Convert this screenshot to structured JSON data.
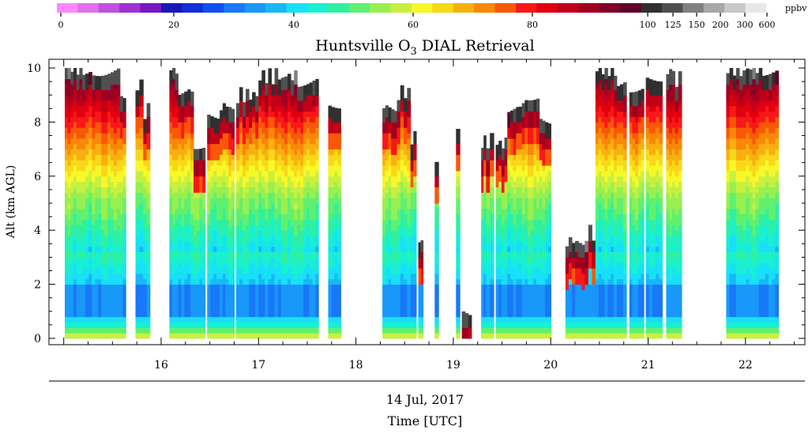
{
  "chart_data": {
    "type": "heatmap",
    "title_prefix": "Huntsville O",
    "title_sub": "3",
    "title_suffix": " DIAL Retrieval",
    "ylabel": "Alt (km AGL)",
    "date_label": "14 Jul, 2017",
    "xlabel": "Time [UTC]",
    "y_ticks": [
      "0",
      "2",
      "4",
      "6",
      "8",
      "10"
    ],
    "y_range": [
      0,
      10
    ],
    "x_range": [
      15.0,
      22.6
    ],
    "x_ticks": [
      "16",
      "17",
      "18",
      "19",
      "20",
      "21",
      "22"
    ],
    "colorbar": {
      "unit": "ppbv",
      "labels": [
        "0",
        "20",
        "40",
        "60",
        "80",
        "100",
        "125",
        "150",
        "200",
        "300",
        "600"
      ],
      "colors": [
        "#ff88ff",
        "#e070f0",
        "#c050e0",
        "#a030d0",
        "#7818c0",
        "#1818b8",
        "#1030d8",
        "#1050f0",
        "#1878f8",
        "#1898f8",
        "#18b8f8",
        "#18e0f8",
        "#18f0d0",
        "#30f0a0",
        "#60f070",
        "#98f050",
        "#c8f040",
        "#f8f828",
        "#f8d818",
        "#f8b010",
        "#f88808",
        "#f85808",
        "#f81818",
        "#e00010",
        "#c00018",
        "#a00020",
        "#800028",
        "#600028",
        "#303030",
        "#505050",
        "#808080",
        "#a8a8a8",
        "#c8c8c8",
        "#e8e8e8"
      ],
      "segments_per_label": 5
    },
    "profiles": [
      {
        "start": 15.05,
        "end": 15.23,
        "top": 10.0
      },
      {
        "start": 15.23,
        "end": 15.33,
        "top": 10.0
      },
      {
        "start": 15.33,
        "end": 15.62,
        "top": 10.0
      },
      {
        "start": 15.62,
        "end": 15.68,
        "top": 9.0
      },
      {
        "start": 15.78,
        "end": 15.86,
        "top": 9.4
      },
      {
        "start": 15.86,
        "end": 15.93,
        "top": 8.4
      },
      {
        "start": 16.13,
        "end": 16.22,
        "top": 10.0
      },
      {
        "start": 16.22,
        "end": 16.38,
        "top": 9.2
      },
      {
        "start": 16.38,
        "end": 16.5,
        "top": 7.3
      },
      {
        "start": 16.52,
        "end": 16.65,
        "top": 8.4
      },
      {
        "start": 16.65,
        "end": 16.8,
        "top": 8.6
      },
      {
        "start": 16.82,
        "end": 17.05,
        "top": 9.0
      },
      {
        "start": 17.05,
        "end": 17.25,
        "top": 9.7
      },
      {
        "start": 17.25,
        "end": 17.45,
        "top": 9.7
      },
      {
        "start": 17.45,
        "end": 17.67,
        "top": 9.6
      },
      {
        "start": 17.77,
        "end": 17.9,
        "top": 8.8
      },
      {
        "start": 18.33,
        "end": 18.48,
        "top": 8.6
      },
      {
        "start": 18.48,
        "end": 18.62,
        "top": 9.1
      },
      {
        "start": 18.62,
        "end": 18.68,
        "top": 7.4
      },
      {
        "start": 18.7,
        "end": 18.75,
        "top": 3.6
      },
      {
        "start": 18.87,
        "end": 18.91,
        "top": 6.8
      },
      {
        "start": 19.09,
        "end": 19.13,
        "top": 8.0
      },
      {
        "start": 19.15,
        "end": 19.25,
        "top": 1.0
      },
      {
        "start": 19.35,
        "end": 19.4,
        "top": 7.3
      },
      {
        "start": 19.4,
        "end": 19.48,
        "top": 7.3
      },
      {
        "start": 19.5,
        "end": 19.62,
        "top": 7.2
      },
      {
        "start": 19.62,
        "end": 19.8,
        "top": 8.6
      },
      {
        "start": 19.8,
        "end": 19.95,
        "top": 9.1
      },
      {
        "start": 19.95,
        "end": 20.07,
        "top": 8.2
      },
      {
        "start": 20.22,
        "end": 20.42,
        "top": 3.6
      },
      {
        "start": 20.42,
        "end": 20.53,
        "top": 3.9
      },
      {
        "start": 20.53,
        "end": 20.75,
        "top": 10.0
      },
      {
        "start": 20.75,
        "end": 20.85,
        "top": 9.5
      },
      {
        "start": 20.88,
        "end": 21.03,
        "top": 9.4
      },
      {
        "start": 21.05,
        "end": 21.22,
        "top": 9.8
      },
      {
        "start": 21.26,
        "end": 21.35,
        "top": 9.9
      },
      {
        "start": 21.35,
        "end": 21.42,
        "top": 9.6
      },
      {
        "start": 21.88,
        "end": 22.05,
        "top": 10.0
      },
      {
        "start": 22.05,
        "end": 22.25,
        "top": 10.0
      },
      {
        "start": 22.25,
        "end": 22.42,
        "top": 10.0
      }
    ]
  }
}
